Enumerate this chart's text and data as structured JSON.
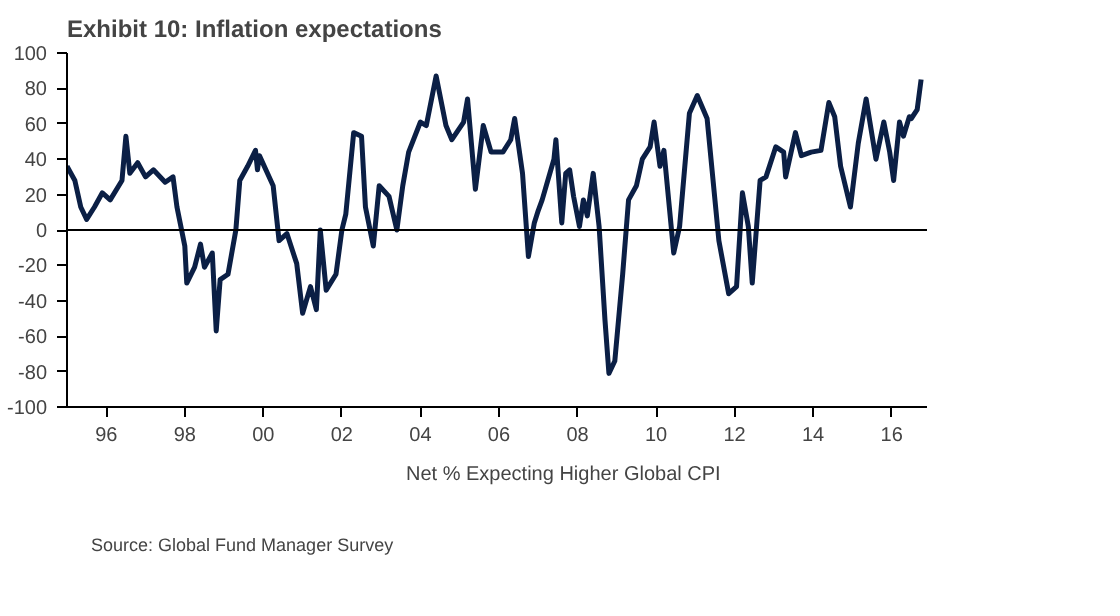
{
  "chart_data": {
    "type": "line",
    "title": "Exhibit 10: Inflation expectations",
    "annotations": [
      "Source: Global Fund Manager Survey"
    ],
    "x": [
      1995.0,
      1995.2,
      1995.35,
      1995.5,
      1995.7,
      1995.9,
      1996.1,
      1996.4,
      1996.5,
      1996.6,
      1996.8,
      1997.0,
      1997.2,
      1997.5,
      1997.7,
      1997.8,
      1998.0,
      1998.05,
      1998.25,
      1998.4,
      1998.5,
      1998.7,
      1998.8,
      1998.9,
      1999.1,
      1999.3,
      1999.4,
      1999.6,
      1999.8,
      1999.85,
      1999.9,
      2000.25,
      2000.4,
      2000.6,
      2000.85,
      2001.0,
      2001.2,
      2001.35,
      2001.45,
      2001.6,
      2001.85,
      2002.0,
      2002.1,
      2002.3,
      2002.5,
      2002.6,
      2002.8,
      2002.95,
      2003.2,
      2003.4,
      2003.55,
      2003.7,
      2004.0,
      2004.15,
      2004.4,
      2004.65,
      2004.8,
      2005.1,
      2005.2,
      2005.4,
      2005.6,
      2005.8,
      2006.1,
      2006.3,
      2006.4,
      2006.6,
      2006.75,
      2006.9,
      2007.0,
      2007.1,
      2007.4,
      2007.45,
      2007.6,
      2007.7,
      2007.8,
      2007.9,
      2008.05,
      2008.15,
      2008.25,
      2008.4,
      2008.55,
      2008.7,
      2008.8,
      2008.95,
      2009.15,
      2009.3,
      2009.5,
      2009.65,
      2009.85,
      2009.95,
      2010.1,
      2010.2,
      2010.45,
      2010.6,
      2010.85,
      2011.05,
      2011.3,
      2011.6,
      2011.85,
      2012.05,
      2012.2,
      2012.35,
      2012.45,
      2012.65,
      2012.8,
      2013.05,
      2013.25,
      2013.3,
      2013.55,
      2013.7,
      2013.95,
      2014.2,
      2014.4,
      2014.55,
      2014.7,
      2014.95,
      2015.15,
      2015.35,
      2015.6,
      2015.8,
      2015.95,
      2016.05,
      2016.2,
      2016.3,
      2016.45,
      2016.5,
      2016.65,
      2016.75
    ],
    "series": [
      {
        "name": "Net % Expecting Higher Global CPI",
        "color": "#0b1f45",
        "values": [
          36,
          28,
          13,
          6,
          13,
          21,
          17,
          28,
          53,
          32,
          38,
          30,
          34,
          27,
          30,
          13,
          -9,
          -30,
          -21,
          -8,
          -21,
          -13,
          -57,
          -28,
          -25,
          0,
          28,
          36,
          45,
          34,
          42,
          25,
          -6,
          -2,
          -19,
          -47,
          -32,
          -45,
          0,
          -34,
          -25,
          0,
          9,
          55,
          53,
          13,
          -9,
          25,
          19,
          0,
          25,
          44,
          61,
          59,
          87,
          59,
          51,
          61,
          74,
          23,
          59,
          44,
          44,
          51,
          63,
          32,
          -15,
          4,
          11,
          17,
          40,
          51,
          4,
          32,
          34,
          19,
          2,
          17,
          8,
          32,
          2,
          -51,
          -81,
          -74,
          -25,
          17,
          25,
          40,
          47,
          61,
          36,
          45,
          -13,
          2,
          66,
          76,
          63,
          -6,
          -36,
          -32,
          21,
          2,
          -30,
          28,
          30,
          47,
          44,
          30,
          55,
          42,
          44,
          45,
          72,
          64,
          36,
          13,
          49,
          74,
          40,
          61,
          44,
          28,
          61,
          53,
          64,
          63,
          68,
          85
        ]
      }
    ],
    "xlim": [
      1995.0,
      2016.9
    ],
    "xticks": [
      {
        "value": 1996,
        "label": "96"
      },
      {
        "value": 1998,
        "label": "98"
      },
      {
        "value": 2000,
        "label": "00"
      },
      {
        "value": 2002,
        "label": "02"
      },
      {
        "value": 2004,
        "label": "04"
      },
      {
        "value": 2006,
        "label": "06"
      },
      {
        "value": 2008,
        "label": "08"
      },
      {
        "value": 2010,
        "label": "10"
      },
      {
        "value": 2012,
        "label": "12"
      },
      {
        "value": 2014,
        "label": "14"
      },
      {
        "value": 2016,
        "label": "16"
      }
    ],
    "ylim": [
      -100,
      100
    ],
    "yticks": [
      -100,
      -80,
      -60,
      -40,
      -20,
      0,
      20,
      40,
      60,
      80,
      100
    ],
    "ref_lines": [
      {
        "axis": "y",
        "value": 0
      }
    ],
    "grid": false,
    "legend": "bottom",
    "line_style": "solid",
    "marker": "none"
  }
}
